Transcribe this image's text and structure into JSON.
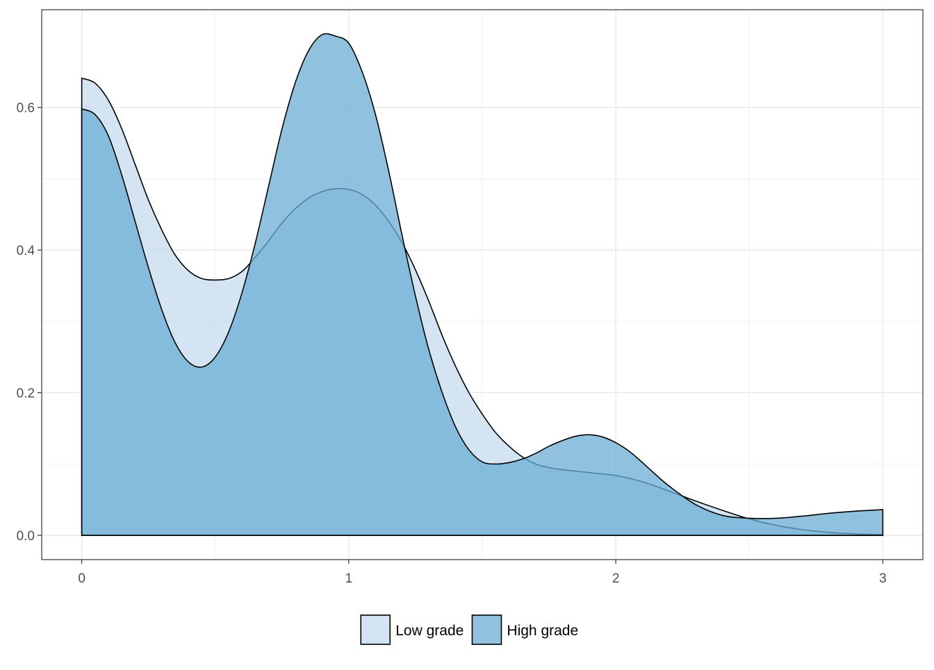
{
  "chart_data": {
    "type": "area",
    "title": "",
    "xlabel": "",
    "ylabel": "",
    "xlim": [
      -0.15,
      3.15
    ],
    "ylim": [
      -0.034,
      0.737
    ],
    "x_ticks": [
      0,
      1,
      2,
      3
    ],
    "x_tick_labels": [
      "0",
      "1",
      "2",
      "3"
    ],
    "y_ticks": [
      0.0,
      0.2,
      0.4,
      0.6
    ],
    "y_tick_labels": [
      "0.0",
      "0.2",
      "0.4",
      "0.6"
    ],
    "grid": true,
    "legend": {
      "position": "bottom"
    },
    "series": [
      {
        "name": "Low grade",
        "fill": "#c6dbef",
        "fill_opacity": 0.75,
        "x": [
          0,
          0.05,
          0.1,
          0.15,
          0.2,
          0.25,
          0.3,
          0.35,
          0.4,
          0.45,
          0.5,
          0.55,
          0.6,
          0.65,
          0.7,
          0.75,
          0.8,
          0.85,
          0.9,
          0.95,
          1.0,
          1.05,
          1.1,
          1.15,
          1.2,
          1.25,
          1.3,
          1.35,
          1.4,
          1.45,
          1.5,
          1.55,
          1.6,
          1.65,
          1.7,
          1.75,
          1.8,
          1.85,
          1.9,
          1.95,
          2.0,
          2.05,
          2.1,
          2.15,
          2.2,
          2.3,
          2.4,
          2.5,
          2.6,
          2.7,
          2.8,
          2.9,
          3.0
        ],
        "values": [
          0.641,
          0.634,
          0.61,
          0.57,
          0.52,
          0.47,
          0.428,
          0.393,
          0.371,
          0.36,
          0.358,
          0.36,
          0.37,
          0.39,
          0.413,
          0.438,
          0.458,
          0.473,
          0.482,
          0.486,
          0.485,
          0.478,
          0.463,
          0.44,
          0.41,
          0.372,
          0.328,
          0.28,
          0.237,
          0.2,
          0.17,
          0.144,
          0.125,
          0.11,
          0.1,
          0.095,
          0.092,
          0.09,
          0.088,
          0.086,
          0.084,
          0.08,
          0.075,
          0.069,
          0.062,
          0.048,
          0.035,
          0.023,
          0.014,
          0.008,
          0.004,
          0.002,
          0.001
        ]
      },
      {
        "name": "High grade",
        "fill": "#6baed6",
        "fill_opacity": 0.75,
        "x": [
          0,
          0.05,
          0.1,
          0.15,
          0.2,
          0.25,
          0.3,
          0.35,
          0.4,
          0.45,
          0.5,
          0.55,
          0.6,
          0.65,
          0.7,
          0.75,
          0.8,
          0.85,
          0.9,
          0.95,
          1.0,
          1.05,
          1.1,
          1.15,
          1.2,
          1.25,
          1.3,
          1.35,
          1.4,
          1.45,
          1.5,
          1.55,
          1.6,
          1.65,
          1.7,
          1.75,
          1.8,
          1.85,
          1.9,
          1.95,
          2.0,
          2.05,
          2.1,
          2.15,
          2.2,
          2.3,
          2.4,
          2.5,
          2.6,
          2.7,
          2.8,
          2.9,
          3.0
        ],
        "values": [
          0.598,
          0.59,
          0.56,
          0.505,
          0.44,
          0.375,
          0.316,
          0.27,
          0.243,
          0.236,
          0.25,
          0.285,
          0.34,
          0.41,
          0.49,
          0.57,
          0.635,
          0.68,
          0.702,
          0.7,
          0.69,
          0.65,
          0.59,
          0.51,
          0.42,
          0.335,
          0.26,
          0.2,
          0.152,
          0.12,
          0.103,
          0.1,
          0.102,
          0.107,
          0.115,
          0.125,
          0.133,
          0.139,
          0.141,
          0.138,
          0.13,
          0.118,
          0.102,
          0.085,
          0.069,
          0.043,
          0.028,
          0.024,
          0.024,
          0.027,
          0.031,
          0.034,
          0.036
        ]
      }
    ]
  }
}
